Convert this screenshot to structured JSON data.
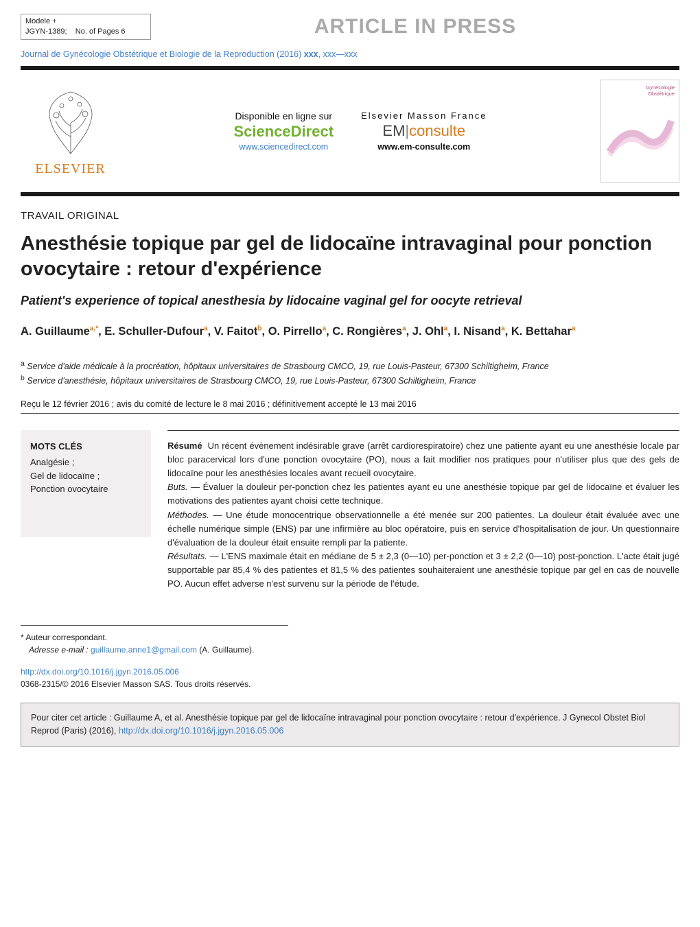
{
  "model_block": {
    "line1": "Modele +",
    "line2_left": "JGYN-1389;",
    "line2_right": "No. of Pages 6"
  },
  "press_banner": "ARTICLE IN PRESS",
  "journal_line": {
    "prefix": "Journal de Gynécologie Obstétrique et Biologie de la Reproduction (2016) ",
    "vol": "xxx",
    "sep": ", ",
    "pages": "xxx—xxx"
  },
  "header": {
    "elsevier_wordmark": "ELSEVIER",
    "sd": {
      "top": "Disponible en ligne sur",
      "brand": "ScienceDirect",
      "url": "www.sciencedirect.com"
    },
    "em": {
      "top": "Elsevier Masson France",
      "em": "EM",
      "cons": "consulte",
      "url": "www.em-consulte.com"
    },
    "thumb": {
      "t1": "Gynécologie",
      "t2": "Obstétrique"
    }
  },
  "article_type": "TRAVAIL ORIGINAL",
  "title_fr": "Anesthésie topique par gel de lidocaïne intravaginal pour ponction ovocytaire : retour d'expérience",
  "title_en": "Patient's experience of topical anesthesia by lidocaine vaginal gel for oocyte retrieval",
  "authors_html": "A. Guillaume<sup>a,*</sup>, E. Schuller-Dufour<sup>a</sup>, V. Faitot<sup>b</sup>, O. Pirrello<sup>a</sup>, C. Rongières<sup>a</sup>, J. Ohl<sup>a</sup>, I. Nisand<sup>a</sup>, K. Bettahar<sup>a</sup>",
  "affiliations": {
    "a": "Service d'aide médicale à la procréation, hôpitaux universitaires de Strasbourg CMCO, 19, rue Louis-Pasteur, 67300 Schiltigheim, France",
    "b": "Service d'anesthésie, hôpitaux universitaires de Strasbourg CMCO, 19, rue Louis-Pasteur, 67300 Schiltigheim, France"
  },
  "dates": "Reçu le 12 février 2016 ; avis du comité de lecture le 8 mai 2016 ; définitivement accepté le 13 mai 2016",
  "keywords": {
    "heading": "MOTS CLÉS",
    "items": [
      "Analgésie ;",
      "Gel de lidocaïne ;",
      "Ponction ovocytaire"
    ]
  },
  "abstract": {
    "lead": "Résumé",
    "intro": "Un récent évènement indésirable grave (arrêt cardiorespiratoire) chez une patiente ayant eu une anesthésie locale par bloc paracervical lors d'une ponction ovocytaire (PO), nous a fait modifier nos pratiques pour n'utiliser plus que des gels de lidocaïne pour les anesthésies locales avant recueil ovocytaire.",
    "buts_label": "Buts.",
    "buts": " — Évaluer la douleur per-ponction chez les patientes ayant eu une anesthésie topique par gel de lidocaïne et évaluer les motivations des patientes ayant choisi cette technique.",
    "methodes_label": "Méthodes.",
    "methodes": " — Une étude monocentrique observationnelle a été menée sur 200 patientes. La douleur était évaluée avec une échelle numérique simple (ENS) par une infirmière au bloc opératoire, puis en service d'hospitalisation de jour. Un questionnaire d'évaluation de la douleur était ensuite rempli par la patiente.",
    "resultats_label": "Résultats.",
    "resultats": " — L'ENS maximale était en médiane de 5 ± 2,3 (0—10) per-ponction et 3 ± 2,2 (0—10) post-ponction. L'acte était jugé supportable par 85,4 % des patientes et 81,5 % des patientes souhaiteraient une anesthésie topique par gel en cas de nouvelle PO. Aucun effet adverse n'est survenu sur la période de l'étude."
  },
  "footnotes": {
    "star": "* Auteur correspondant.",
    "email_label": "Adresse e-mail : ",
    "email": "guillaume.anne1@gmail.com",
    "email_tail": " (A. Guillaume)."
  },
  "doi": {
    "url": "http://dx.doi.org/10.1016/j.jgyn.2016.05.006",
    "copyright": "0368-2315/© 2016 Elsevier Masson SAS. Tous droits réservés."
  },
  "cite": {
    "prefix": "Pour citer cet article : Guillaume A, et al. Anesthésie topique par gel de lidocaïne intravaginal pour ponction ovocytaire : retour d'expérience. J Gynecol Obstet Biol Reprod (Paris) (2016), ",
    "url": "http://dx.doi.org/10.1016/j.jgyn.2016.05.006"
  },
  "colors": {
    "link": "#3f7fcf",
    "orange": "#d97a1a",
    "green": "#6fb12c",
    "grey_banner": "#aaaaaa",
    "box_bg": "#f1efef",
    "cite_bg": "#eceaea"
  }
}
